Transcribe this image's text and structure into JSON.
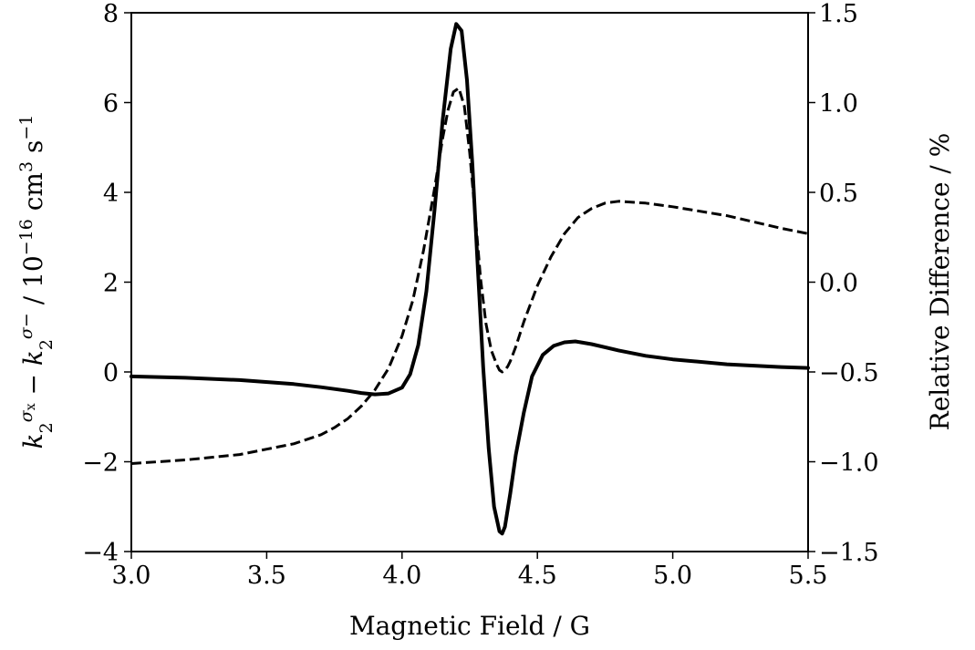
{
  "chart_data": {
    "type": "line",
    "xlabel": "Magnetic Field / G",
    "ylabel_left_parts": [
      "k",
      "2",
      "σ",
      "x",
      " − ",
      "k",
      "2",
      "σ",
      "−",
      " / 10",
      "−16",
      " cm",
      "3",
      " s",
      "−1"
    ],
    "ylabel_right": "Relative Difference / %",
    "xlim": [
      3.0,
      5.5
    ],
    "ylim_left": [
      -4,
      8
    ],
    "ylim_right": [
      -1.5,
      1.5
    ],
    "x_ticks": [
      "3.0",
      "3.5",
      "4.0",
      "4.5",
      "5.0",
      "5.5"
    ],
    "y_left_ticks": [
      "−4",
      "−2",
      "0",
      "2",
      "4",
      "6",
      "8"
    ],
    "y_right_ticks": [
      "−1.5",
      "−1.0",
      "−0.5",
      "0.0",
      "0.5",
      "1.0",
      "1.5"
    ],
    "series": [
      {
        "axis": "left",
        "style": "solid",
        "x": [
          3.0,
          3.2,
          3.4,
          3.6,
          3.7,
          3.8,
          3.85,
          3.9,
          3.95,
          4.0,
          4.03,
          4.06,
          4.09,
          4.12,
          4.15,
          4.18,
          4.2,
          4.22,
          4.24,
          4.26,
          4.28,
          4.3,
          4.32,
          4.34,
          4.36,
          4.37,
          4.38,
          4.4,
          4.42,
          4.45,
          4.48,
          4.52,
          4.56,
          4.6,
          4.64,
          4.7,
          4.8,
          4.9,
          5.0,
          5.2,
          5.4,
          5.5
        ],
        "y": [
          -0.1,
          -0.13,
          -0.18,
          -0.27,
          -0.34,
          -0.42,
          -0.47,
          -0.5,
          -0.48,
          -0.35,
          -0.05,
          0.6,
          1.8,
          3.6,
          5.6,
          7.2,
          7.75,
          7.6,
          6.5,
          4.6,
          2.3,
          0.1,
          -1.7,
          -3.0,
          -3.55,
          -3.6,
          -3.45,
          -2.7,
          -1.85,
          -0.9,
          -0.1,
          0.38,
          0.58,
          0.66,
          0.68,
          0.62,
          0.48,
          0.36,
          0.28,
          0.17,
          0.11,
          0.09
        ]
      },
      {
        "axis": "right",
        "style": "dashed",
        "x": [
          3.0,
          3.2,
          3.4,
          3.5,
          3.6,
          3.7,
          3.75,
          3.8,
          3.85,
          3.9,
          3.95,
          4.0,
          4.04,
          4.08,
          4.12,
          4.15,
          4.17,
          4.19,
          4.21,
          4.23,
          4.25,
          4.27,
          4.29,
          4.31,
          4.33,
          4.35,
          4.36,
          4.37,
          4.38,
          4.39,
          4.4,
          4.42,
          4.45,
          4.5,
          4.55,
          4.6,
          4.65,
          4.7,
          4.75,
          4.8,
          4.9,
          5.0,
          5.2,
          5.4,
          5.5
        ],
        "y": [
          -1.01,
          -0.99,
          -0.96,
          -0.93,
          -0.9,
          -0.85,
          -0.81,
          -0.76,
          -0.69,
          -0.6,
          -0.48,
          -0.3,
          -0.1,
          0.18,
          0.52,
          0.8,
          0.96,
          1.06,
          1.08,
          0.98,
          0.72,
          0.38,
          0.02,
          -0.23,
          -0.38,
          -0.46,
          -0.49,
          -0.5,
          -0.49,
          -0.47,
          -0.44,
          -0.36,
          -0.22,
          -0.02,
          0.14,
          0.27,
          0.36,
          0.41,
          0.44,
          0.45,
          0.44,
          0.42,
          0.37,
          0.3,
          0.27
        ]
      }
    ]
  }
}
